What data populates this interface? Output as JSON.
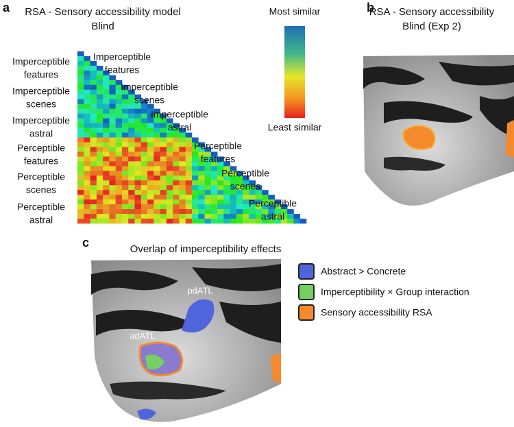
{
  "panels": [
    {
      "label": "a",
      "title": "RSA - Sensory accessibility model",
      "subtitle": "Blind",
      "row_labels": [
        [
          "Imperceptible",
          "features"
        ],
        [
          "Imperceptible",
          "scenes"
        ],
        [
          "Imperceptible",
          "astral"
        ],
        [
          "Perceptible",
          "features"
        ],
        [
          "Perceptible",
          "scenes"
        ],
        [
          "Perceptible",
          "astral"
        ]
      ],
      "diagonal_labels": [
        [
          "Imperceptible",
          "features"
        ],
        [
          "Imperceptible",
          "scenes"
        ],
        [
          "Imperceptible",
          "astral"
        ],
        [
          "Perceptible",
          "features"
        ],
        [
          "Perceptible",
          "scenes"
        ],
        [
          "Perceptible",
          "astral"
        ]
      ],
      "colorbar": {
        "top": "Most similar",
        "bottom": "Least similar"
      }
    },
    {
      "label": "b",
      "title": "RSA - Sensory accessibility",
      "subtitle": "Blind (Exp 2)"
    },
    {
      "label": "c",
      "title": "Overlap of imperceptibility effects",
      "region_labels": [
        "pdATL",
        "adATL"
      ],
      "legend": [
        {
          "label": "Abstract > Concrete",
          "color": "#5064dc"
        },
        {
          "label": "Imperceptibility × Group interaction",
          "color": "#74d060"
        },
        {
          "label": "Sensory accessibility RSA",
          "color": "#f58a2c"
        }
      ]
    }
  ]
}
